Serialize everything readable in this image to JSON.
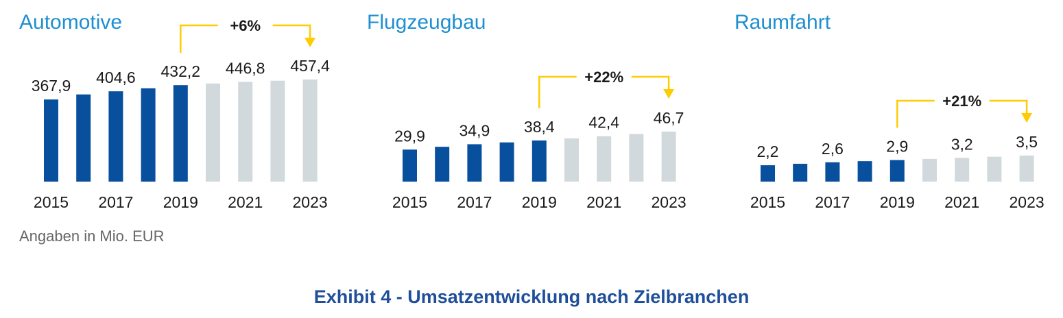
{
  "colors": {
    "title": "#1e8fd1",
    "actual": "#08509e",
    "forecast": "#d2d9dc",
    "arrow": "#ffcc00",
    "text": "#1a1a1a",
    "exhibit_title": "#1f4e9a"
  },
  "unit_note": "Angaben in Mio. EUR",
  "exhibit_title": "Exhibit 4 - Umsatzentwicklung nach Zielbranchen",
  "chart_data": [
    {
      "type": "bar",
      "title": "Automotive",
      "categories": [
        "2015",
        "2016",
        "2017",
        "2018",
        "2019",
        "2020",
        "2021",
        "2022",
        "2023"
      ],
      "x_tick_labels": [
        "2015",
        "2017",
        "2019",
        "2021",
        "2023"
      ],
      "values": [
        367.9,
        390.5,
        404.6,
        418.0,
        432.2,
        439.5,
        446.8,
        452.1,
        457.4
      ],
      "value_labels": [
        "367,9",
        "",
        "404,6",
        "",
        "432,2",
        "",
        "446,8",
        "",
        "457,4"
      ],
      "actual_until": "2019",
      "growth_annotation": {
        "label": "+6%",
        "from": "2019",
        "to": "2023"
      },
      "ylim": [
        0,
        457.4
      ]
    },
    {
      "type": "bar",
      "title": "Flugzeugbau",
      "categories": [
        "2015",
        "2016",
        "2017",
        "2018",
        "2019",
        "2020",
        "2021",
        "2022",
        "2023"
      ],
      "x_tick_labels": [
        "2015",
        "2017",
        "2019",
        "2021",
        "2023"
      ],
      "values": [
        29.9,
        32.5,
        34.9,
        36.6,
        38.4,
        40.4,
        42.4,
        44.5,
        46.7
      ],
      "value_labels": [
        "29,9",
        "",
        "34,9",
        "",
        "38,4",
        "",
        "42,4",
        "",
        "46,7"
      ],
      "actual_until": "2019",
      "growth_annotation": {
        "label": "+22%",
        "from": "2019",
        "to": "2023"
      },
      "ylim": [
        0,
        46.7
      ]
    },
    {
      "type": "bar",
      "title": "Raumfahrt",
      "categories": [
        "2015",
        "2016",
        "2017",
        "2018",
        "2019",
        "2020",
        "2021",
        "2022",
        "2023"
      ],
      "x_tick_labels": [
        "2015",
        "2017",
        "2019",
        "2021",
        "2023"
      ],
      "values": [
        2.2,
        2.4,
        2.6,
        2.75,
        2.9,
        3.05,
        3.2,
        3.35,
        3.5
      ],
      "value_labels": [
        "2,2",
        "",
        "2,6",
        "",
        "2,9",
        "",
        "3,2",
        "",
        "3,5"
      ],
      "actual_until": "2019",
      "growth_annotation": {
        "label": "+21%",
        "from": "2019",
        "to": "2023"
      },
      "ylim": [
        0,
        3.5
      ]
    }
  ]
}
